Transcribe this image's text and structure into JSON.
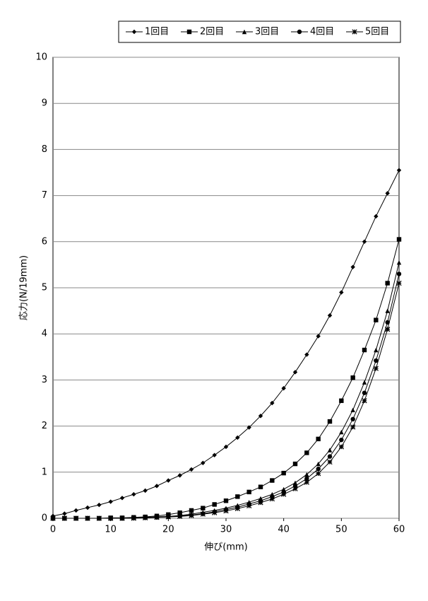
{
  "chart_data": {
    "type": "line",
    "xlabel": "伸び(mm)",
    "ylabel": "応力(N/19mm)",
    "x": [
      0,
      2,
      4,
      6,
      8,
      10,
      12,
      14,
      16,
      18,
      20,
      22,
      24,
      26,
      28,
      30,
      32,
      34,
      36,
      38,
      40,
      42,
      44,
      46,
      48,
      50,
      52,
      54,
      56,
      58,
      60
    ],
    "series": [
      {
        "name": "1回目",
        "color": "#000000",
        "marker": "diamond",
        "values": [
          0.05,
          0.1,
          0.17,
          0.23,
          0.29,
          0.36,
          0.44,
          0.52,
          0.6,
          0.7,
          0.82,
          0.93,
          1.06,
          1.2,
          1.37,
          1.55,
          1.75,
          1.97,
          2.22,
          2.5,
          2.82,
          3.17,
          3.55,
          3.95,
          4.4,
          4.9,
          5.45,
          6.0,
          6.55,
          7.05,
          7.55
        ]
      },
      {
        "name": "2回目",
        "color": "#000000",
        "marker": "square",
        "values": [
          0,
          0,
          0,
          0,
          0,
          0.01,
          0.01,
          0.02,
          0.03,
          0.05,
          0.08,
          0.12,
          0.17,
          0.22,
          0.3,
          0.38,
          0.47,
          0.57,
          0.68,
          0.82,
          0.98,
          1.18,
          1.42,
          1.72,
          2.1,
          2.55,
          3.05,
          3.65,
          4.3,
          5.1,
          6.05
        ]
      },
      {
        "name": "3回目",
        "color": "#000000",
        "marker": "triangle",
        "values": [
          0,
          0,
          0,
          0,
          0,
          0,
          0,
          0.01,
          0.02,
          0.03,
          0.04,
          0.06,
          0.09,
          0.13,
          0.17,
          0.22,
          0.28,
          0.35,
          0.43,
          0.52,
          0.63,
          0.77,
          0.95,
          1.18,
          1.48,
          1.87,
          2.35,
          2.95,
          3.65,
          4.5,
          5.55
        ]
      },
      {
        "name": "4回目",
        "color": "#000000",
        "marker": "circle",
        "values": [
          0,
          0,
          0,
          0,
          0,
          0,
          0,
          0.01,
          0.01,
          0.02,
          0.03,
          0.05,
          0.07,
          0.1,
          0.14,
          0.19,
          0.24,
          0.31,
          0.38,
          0.47,
          0.57,
          0.7,
          0.86,
          1.07,
          1.34,
          1.7,
          2.15,
          2.72,
          3.42,
          4.25,
          5.3
        ]
      },
      {
        "name": "5回目",
        "color": "#000000",
        "marker": "star",
        "values": [
          0,
          0,
          0,
          0,
          0,
          0,
          0,
          0,
          0.01,
          0.02,
          0.03,
          0.04,
          0.06,
          0.09,
          0.12,
          0.16,
          0.21,
          0.27,
          0.34,
          0.42,
          0.52,
          0.64,
          0.78,
          0.97,
          1.22,
          1.55,
          1.98,
          2.55,
          3.25,
          4.1,
          5.1
        ]
      }
    ],
    "xlim": [
      0,
      60
    ],
    "xticks": [
      0,
      10,
      20,
      30,
      40,
      50,
      60
    ],
    "ylim": [
      0,
      10
    ],
    "yticks": [
      0,
      1,
      2,
      3,
      4,
      5,
      6,
      7,
      8,
      9,
      10
    ],
    "grid": true,
    "legend": "top"
  }
}
